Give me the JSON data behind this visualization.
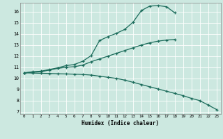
{
  "xlabel": "Humidex (Indice chaleur)",
  "bg_color": "#cce8e0",
  "line_color": "#1a6b5a",
  "xlim": [
    -0.5,
    23.5
  ],
  "ylim": [
    6.8,
    16.8
  ],
  "xticks": [
    0,
    1,
    2,
    3,
    4,
    5,
    6,
    7,
    8,
    9,
    10,
    11,
    12,
    13,
    14,
    15,
    16,
    17,
    18,
    19,
    20,
    21,
    22,
    23
  ],
  "yticks": [
    7,
    8,
    9,
    10,
    11,
    12,
    13,
    14,
    15,
    16
  ],
  "curve1_x": [
    0,
    1,
    2,
    3,
    4,
    5,
    6,
    7,
    8,
    9,
    10,
    11,
    12,
    13,
    14,
    15,
    16,
    17,
    18
  ],
  "curve1_y": [
    10.5,
    10.6,
    10.65,
    10.8,
    10.95,
    11.15,
    11.25,
    11.55,
    12.05,
    13.4,
    13.75,
    14.05,
    14.4,
    15.05,
    16.1,
    16.5,
    16.55,
    16.45,
    15.9
  ],
  "curve2_x": [
    0,
    1,
    2,
    3,
    4,
    5,
    6,
    7,
    8,
    9,
    10,
    11,
    12,
    13,
    14,
    15,
    16,
    17,
    18
  ],
  "curve2_y": [
    10.5,
    10.55,
    10.6,
    10.75,
    10.9,
    11.0,
    11.05,
    11.2,
    11.5,
    11.75,
    12.0,
    12.25,
    12.5,
    12.75,
    13.0,
    13.2,
    13.35,
    13.45,
    13.5
  ],
  "curve3_x": [
    0,
    1,
    2,
    3,
    4,
    5,
    6,
    7,
    8,
    9,
    10,
    11,
    12,
    13,
    14,
    15,
    16,
    17,
    18,
    19,
    20,
    21,
    22,
    23
  ],
  "curve3_y": [
    10.5,
    10.48,
    10.46,
    10.44,
    10.42,
    10.4,
    10.38,
    10.35,
    10.3,
    10.2,
    10.1,
    10.0,
    9.85,
    9.65,
    9.45,
    9.25,
    9.05,
    8.85,
    8.65,
    8.45,
    8.2,
    8.0,
    7.6,
    7.2
  ]
}
